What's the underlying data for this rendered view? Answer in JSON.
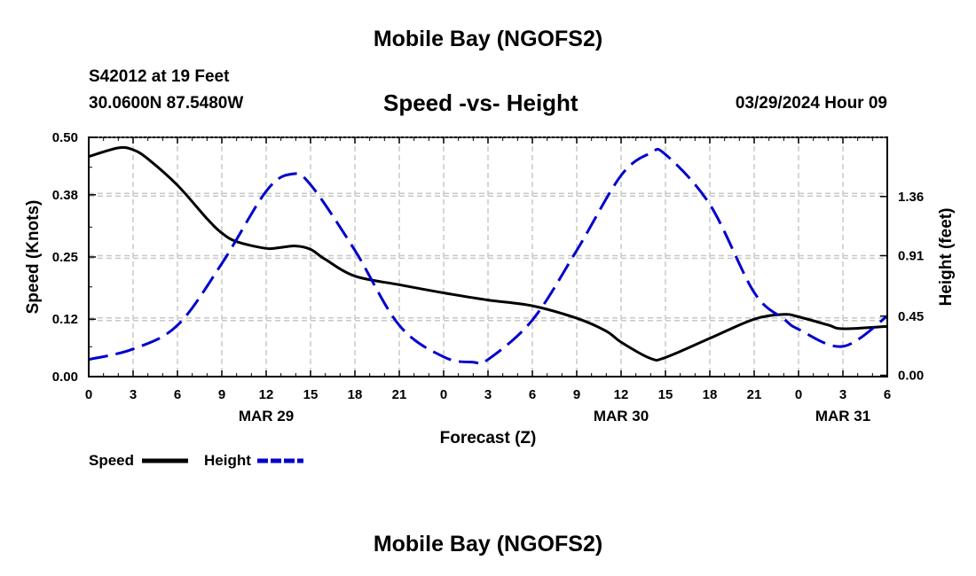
{
  "header": {
    "title": "Mobile Bay (NGOFS2)",
    "station": "S42012 at 19 Feet",
    "coords": "30.0600N  87.5480W",
    "chart_title": "Speed -vs- Height",
    "run_time": "03/29/2024 Hour 09"
  },
  "footer": {
    "title": "Mobile Bay (NGOFS2)"
  },
  "colors": {
    "speed": "#000000",
    "height": "#0000cc",
    "grid": "#c8c8c8"
  },
  "chart_data": {
    "type": "line",
    "title": "Speed -vs- Height",
    "xlabel": "Forecast (Z)",
    "ylabel": "Speed (Knots)",
    "y2label": "Height (feet)",
    "x_range_hours": [
      0,
      54
    ],
    "x_ticks": [
      "0",
      "3",
      "6",
      "9",
      "12",
      "15",
      "18",
      "21",
      "0",
      "3",
      "6",
      "9",
      "12",
      "15",
      "18",
      "21",
      "0",
      "3",
      "6"
    ],
    "date_labels": [
      {
        "text": "MAR 29",
        "hour": 12
      },
      {
        "text": "MAR 30",
        "hour": 36
      },
      {
        "text": "MAR 31",
        "hour": 51
      }
    ],
    "ylim": [
      0,
      0.5
    ],
    "y_ticks": [
      0.0,
      0.12,
      0.25,
      0.38,
      0.5
    ],
    "y_tick_labels": [
      "0.00",
      "0.12",
      "0.25",
      "0.38",
      "0.50"
    ],
    "y2lim": [
      -0.01,
      1.81
    ],
    "y2_ticks": [
      0.0,
      0.45,
      0.91,
      1.36
    ],
    "y2_tick_labels": [
      "0.00",
      "0.45",
      "0.91",
      "1.36"
    ],
    "grid": true,
    "legend_placement": "bottom-left",
    "series": [
      {
        "name": "Speed",
        "axis": "left",
        "style": "solid",
        "x": [
          0,
          2,
          3,
          4,
          6,
          8,
          9,
          10,
          12,
          13,
          14,
          15,
          16,
          18,
          21,
          24,
          27,
          30,
          33,
          35,
          36,
          38,
          39,
          42,
          45,
          47,
          48,
          50,
          51,
          54
        ],
        "y": [
          0.46,
          0.478,
          0.474,
          0.455,
          0.4,
          0.33,
          0.3,
          0.282,
          0.268,
          0.27,
          0.273,
          0.266,
          0.245,
          0.21,
          0.192,
          0.175,
          0.16,
          0.148,
          0.122,
          0.095,
          0.072,
          0.038,
          0.04,
          0.08,
          0.12,
          0.13,
          0.125,
          0.108,
          0.1,
          0.105
        ]
      },
      {
        "name": "Height",
        "axis": "right",
        "style": "dashed",
        "x": [
          0,
          3,
          6,
          9,
          12,
          13.7,
          15,
          18,
          21,
          24,
          26,
          27,
          30,
          33,
          36,
          38,
          39,
          42,
          45,
          47,
          48,
          51,
          54
        ],
        "y": [
          0.12,
          0.2,
          0.38,
          0.85,
          1.4,
          1.53,
          1.45,
          0.95,
          0.38,
          0.14,
          0.1,
          0.12,
          0.42,
          0.95,
          1.52,
          1.69,
          1.68,
          1.3,
          0.63,
          0.43,
          0.35,
          0.22,
          0.45
        ]
      }
    ]
  },
  "legend": [
    {
      "label": "Speed",
      "series": "Speed"
    },
    {
      "label": "Height",
      "series": "Height"
    }
  ]
}
